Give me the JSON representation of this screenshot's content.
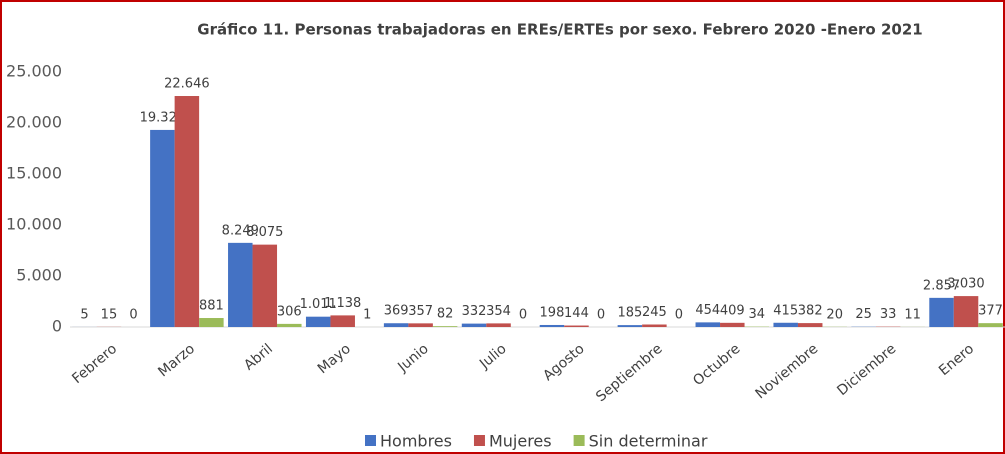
{
  "chart_data": {
    "type": "bar",
    "title": "Gráfico 11. Personas trabajadoras en EREs/ERTEs por sexo. Febrero 2020 -Enero 2021",
    "categories": [
      "Febrero",
      "Marzo",
      "Abril",
      "Mayo",
      "Junio",
      "Julio",
      "Agosto",
      "Septiembre",
      "Octubre",
      "Noviembre",
      "Diciembre",
      "Enero"
    ],
    "series": [
      {
        "name": "Hombres",
        "color": "#4472c4",
        "values": [
          5,
          19321,
          8249,
          1011,
          369,
          332,
          198,
          185,
          454,
          415,
          25,
          2857
        ],
        "value_labels": [
          "5",
          "19.321",
          "8.249",
          "1.011",
          "369",
          "332",
          "198",
          "185",
          "454",
          "415",
          "25",
          "2.857"
        ]
      },
      {
        "name": "Mujeres",
        "color": "#c0504d",
        "values": [
          15,
          22646,
          8075,
          1138,
          357,
          354,
          144,
          245,
          409,
          382,
          33,
          3030
        ],
        "value_labels": [
          "15",
          "22.646",
          "8.075",
          "1.138",
          "357",
          "354",
          "144",
          "245",
          "409",
          "382",
          "33",
          "3.030"
        ]
      },
      {
        "name": "Sin determinar",
        "color": "#9bbb59",
        "values": [
          0,
          881,
          306,
          1,
          82,
          0,
          0,
          0,
          34,
          20,
          11,
          377
        ]
      }
    ],
    "ylim": [
      0,
      25000
    ],
    "yticks": [
      0,
      {
        "value": 5000,
        "label": "5.000"
      },
      {
        "value": 10000,
        "label": "10.000"
      },
      {
        "value": 15000,
        "label": "15.000"
      },
      {
        "value": 20000,
        "label": "20.000"
      },
      {
        "value": 25000,
        "label": "25.000"
      }
    ],
    "grid": false
  }
}
